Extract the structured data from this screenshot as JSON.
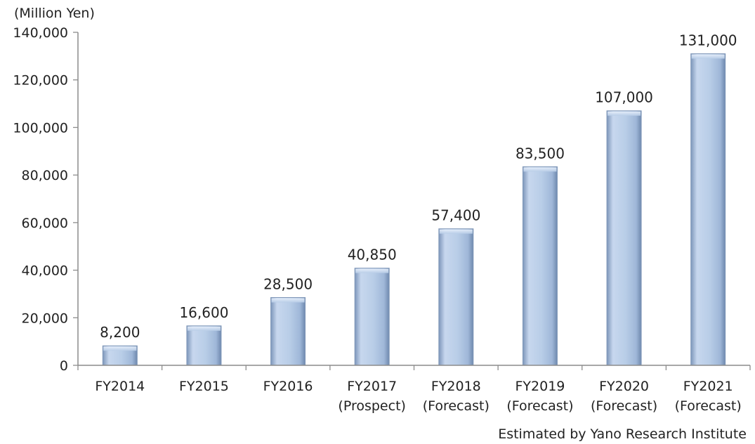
{
  "chart_data": {
    "type": "bar",
    "unit_label": "(Million Yen)",
    "categories": [
      [
        "FY2014"
      ],
      [
        "FY2015"
      ],
      [
        "FY2016"
      ],
      [
        "FY2017",
        "(Prospect)"
      ],
      [
        "FY2018",
        "(Forecast)"
      ],
      [
        "FY2019",
        "(Forecast)"
      ],
      [
        "FY2020",
        "(Forecast)"
      ],
      [
        "FY2021",
        "(Forecast)"
      ]
    ],
    "values": [
      8200,
      16600,
      28500,
      40850,
      57400,
      83500,
      107000,
      131000
    ],
    "data_labels": [
      "8,200",
      "16,600",
      "28,500",
      "40,850",
      "57,400",
      "83,500",
      "107,000",
      "131,000"
    ],
    "ylim": [
      0,
      140000
    ],
    "yticks": [
      0,
      20000,
      40000,
      60000,
      80000,
      100000,
      120000,
      140000
    ],
    "ytick_labels": [
      "0",
      "20,000",
      "40,000",
      "60,000",
      "80,000",
      "100,000",
      "120,000",
      "140,000"
    ],
    "grid": false,
    "legend": "none",
    "bar_color": "#b9cde6",
    "bar_edge_color": "#7f97b8",
    "axis_color": "#8c8c8c"
  },
  "source_note": "Estimated by Yano Research Institute"
}
